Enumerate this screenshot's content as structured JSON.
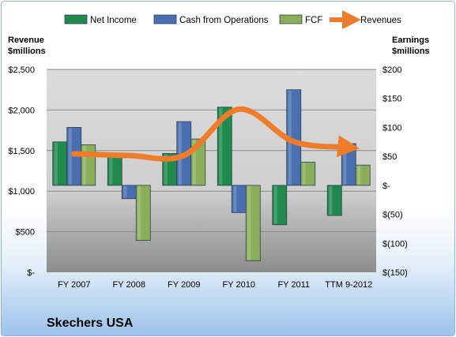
{
  "chart_data": {
    "type": "bar",
    "title": "Skechers USA",
    "categories": [
      "FY 2007",
      "FY 2008",
      "FY 2009",
      "FY 2010",
      "FY 2011",
      "TTM 9-2012"
    ],
    "left_axis": {
      "label_line1": "Revenue",
      "label_line2": "$millions",
      "ticks": [
        0,
        500,
        1000,
        1500,
        2000,
        2500
      ],
      "tick_labels": [
        "$-",
        "$500",
        "$1,000",
        "$1,500",
        "$2,000",
        "$2,500"
      ],
      "ylim": [
        0,
        2500
      ]
    },
    "right_axis": {
      "label_line1": "Earnings",
      "label_line2": "$millions",
      "ticks": [
        -150,
        -100,
        -50,
        0,
        50,
        100,
        150,
        200
      ],
      "tick_labels": [
        "$(150)",
        "$(100)",
        "$(50)",
        "$-",
        "$50",
        "$100",
        "$150",
        "$200"
      ],
      "ylim": [
        -150,
        200
      ]
    },
    "series": [
      {
        "name": "Net Income",
        "axis": "right",
        "kind": "bar",
        "color": "#1f8a4c",
        "values": [
          75,
          55,
          55,
          135,
          -68,
          -52
        ]
      },
      {
        "name": "Cash from Operations",
        "axis": "right",
        "kind": "bar",
        "color": "#4a6fb0",
        "values": [
          100,
          -23,
          110,
          -47,
          165,
          72
        ]
      },
      {
        "name": "FCF",
        "axis": "right",
        "kind": "bar",
        "color": "#8aaf5a",
        "values": [
          70,
          -95,
          80,
          -130,
          40,
          35
        ]
      },
      {
        "name": "Revenues",
        "axis": "left",
        "kind": "line",
        "color": "#ee7c2a",
        "values": [
          1460,
          1440,
          1440,
          2010,
          1610,
          1540
        ]
      }
    ],
    "grid": true,
    "legend_position": "top"
  }
}
